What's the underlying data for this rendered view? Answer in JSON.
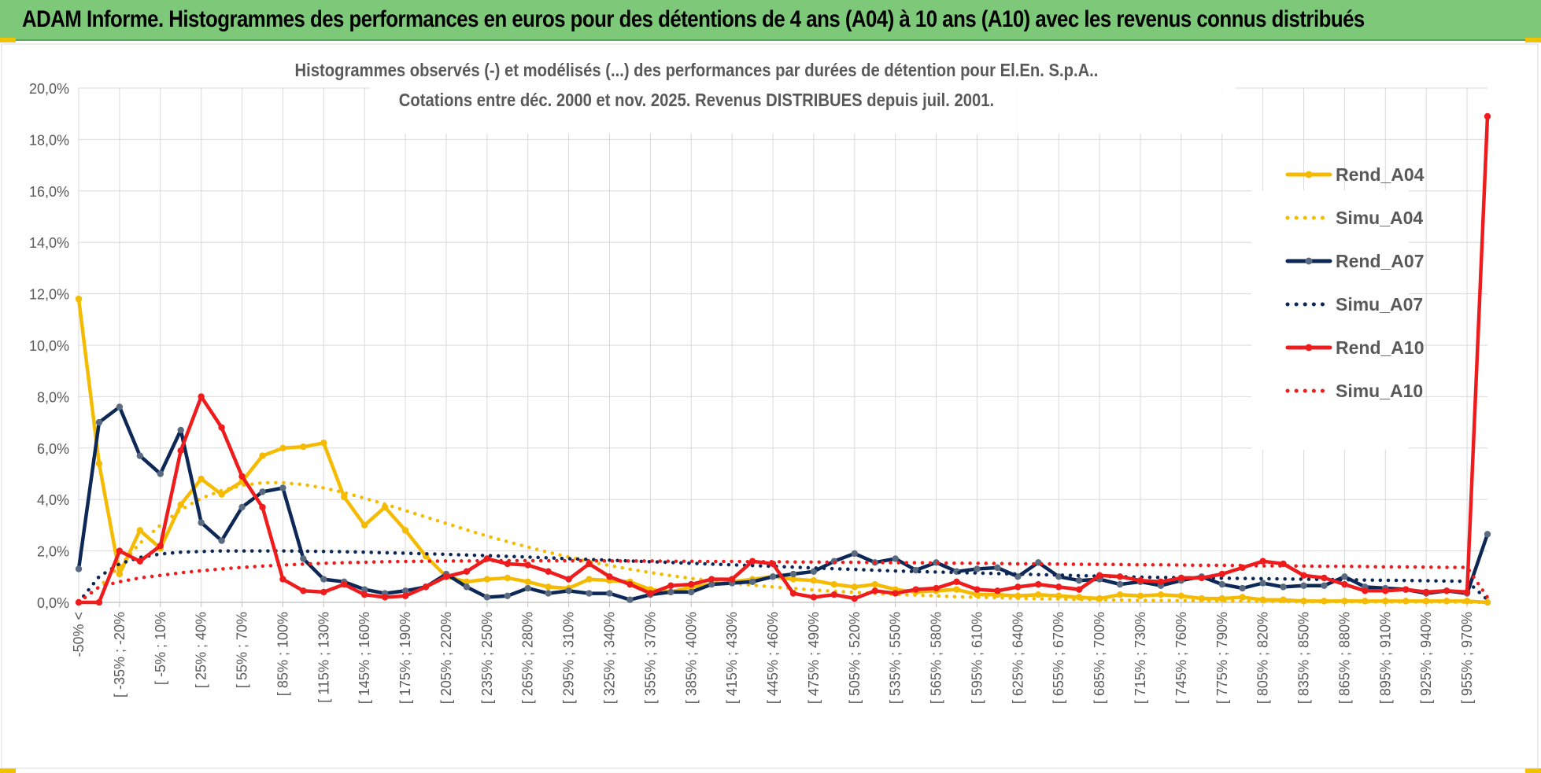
{
  "header": {
    "title": "ADAM Informe. Histogrammes des performances en euros pour des détentions de 4 ans (A04) à 10 ans (A10) avec les revenus connus distribués"
  },
  "colors": {
    "banner": "#7ec87a",
    "a04": "#f5bb00",
    "a07": "#0d2857",
    "a10": "#ee1c1c",
    "grid": "#d9d9d9",
    "axis_text": "#595959"
  },
  "chart_data": {
    "type": "line",
    "title": "Histogrammes observés (-) et modélisés (...) des performances par durées de détention pour El.En. S.p.A..",
    "subtitle": "Cotations entre déc. 2000 et nov. 2025. Revenus DISTRIBUES depuis juil. 2001.",
    "ylim": [
      0,
      20
    ],
    "yticks": [
      "0,0%",
      "2,0%",
      "4,0%",
      "6,0%",
      "8,0%",
      "10,0%",
      "12,0%",
      "14,0%",
      "16,0%",
      "18,0%",
      "20,0%"
    ],
    "xtick_labels": [
      "-50% <",
      "[ -35% ; -20%",
      "[ -5% ; 10%",
      "[ 25% ; 40%",
      "[ 55% ; 70%",
      "[ 85% ; 100%",
      "[ 115% ; 130%",
      "[ 145% ; 160%",
      "[ 175% ; 190%",
      "[ 205% ; 220%",
      "[ 235% ; 250%",
      "[ 265% ; 280%",
      "[ 295% ; 310%",
      "[ 325% ; 340%",
      "[ 355% ; 370%",
      "[ 385% ; 400%",
      "[ 415% ; 430%",
      "[ 445% ; 460%",
      "[ 475% ; 490%",
      "[ 505% ; 520%",
      "[ 535% ; 550%",
      "[ 565% ; 580%",
      "[ 595% ; 610%",
      "[ 625% ; 640%",
      "[ 655% ; 670%",
      "[ 685% ; 700%",
      "[ 715% ; 730%",
      "[ 745% ; 760%",
      "[ 775% ; 790%",
      "[ 805% ; 820%",
      "[ 835% ; 850%",
      "[ 865% ; 880%",
      "[ 895% ; 910%",
      "[ 925% ; 940%",
      "[ 955% ; 970%"
    ],
    "n_points": 70,
    "grid": true,
    "legend_position": "right",
    "series": [
      {
        "name": "Rend_A04",
        "style": "solid",
        "color": "#f5bb00",
        "values": [
          11.8,
          5.4,
          1.1,
          2.8,
          2.1,
          3.8,
          4.8,
          4.2,
          4.7,
          5.7,
          6.0,
          6.05,
          6.2,
          4.1,
          3.0,
          3.7,
          2.8,
          1.8,
          1.0,
          0.8,
          0.9,
          0.95,
          0.8,
          0.6,
          0.55,
          0.9,
          0.85,
          0.8,
          0.5,
          0.4,
          0.6,
          0.7,
          0.8,
          0.9,
          1.0,
          0.9,
          0.85,
          0.7,
          0.6,
          0.7,
          0.5,
          0.4,
          0.45,
          0.5,
          0.3,
          0.3,
          0.25,
          0.3,
          0.25,
          0.2,
          0.15,
          0.3,
          0.25,
          0.3,
          0.25,
          0.15,
          0.15,
          0.2,
          0.1,
          0.1,
          0.05,
          0.05,
          0.05,
          0.05,
          0.05,
          0.05,
          0.05,
          0.05,
          0.05,
          0.0
        ]
      },
      {
        "name": "Simu_A04",
        "style": "dotted",
        "color": "#f5bb00",
        "values": [
          0.0,
          0.6,
          1.4,
          2.3,
          3.0,
          3.6,
          4.05,
          4.35,
          4.55,
          4.65,
          4.65,
          4.58,
          4.45,
          4.27,
          4.05,
          3.82,
          3.57,
          3.32,
          3.07,
          2.82,
          2.58,
          2.36,
          2.15,
          1.95,
          1.76,
          1.59,
          1.43,
          1.29,
          1.16,
          1.04,
          0.93,
          0.84,
          0.75,
          0.67,
          0.6,
          0.54,
          0.48,
          0.43,
          0.39,
          0.35,
          0.31,
          0.28,
          0.25,
          0.22,
          0.2,
          0.18,
          0.16,
          0.14,
          0.13,
          0.11,
          0.1,
          0.09,
          0.08,
          0.07,
          0.07,
          0.06,
          0.05,
          0.05,
          0.04,
          0.04,
          0.03,
          0.03,
          0.03,
          0.02,
          0.02,
          0.02,
          0.02,
          0.02,
          0.01,
          0.0
        ]
      },
      {
        "name": "Rend_A07",
        "style": "solid",
        "color": "#0d2857",
        "values": [
          1.3,
          7.0,
          7.6,
          5.7,
          5.0,
          6.7,
          3.1,
          2.4,
          3.7,
          4.3,
          4.45,
          1.7,
          0.9,
          0.8,
          0.5,
          0.35,
          0.45,
          0.6,
          1.1,
          0.6,
          0.2,
          0.25,
          0.55,
          0.35,
          0.45,
          0.35,
          0.35,
          0.1,
          0.3,
          0.4,
          0.4,
          0.7,
          0.75,
          0.8,
          1.0,
          1.1,
          1.2,
          1.6,
          1.9,
          1.55,
          1.7,
          1.25,
          1.55,
          1.2,
          1.3,
          1.35,
          1.0,
          1.55,
          1.0,
          0.85,
          0.9,
          0.7,
          0.8,
          0.65,
          0.85,
          1.0,
          0.7,
          0.55,
          0.75,
          0.6,
          0.65,
          0.65,
          1.0,
          0.6,
          0.55,
          0.5,
          0.35,
          0.45,
          0.35,
          2.65
        ]
      },
      {
        "name": "Simu_A07",
        "style": "dotted",
        "color": "#0d2857",
        "values": [
          0.0,
          1.0,
          1.5,
          1.75,
          1.88,
          1.95,
          1.98,
          2.0,
          2.0,
          2.0,
          2.0,
          1.99,
          1.98,
          1.97,
          1.95,
          1.93,
          1.91,
          1.89,
          1.87,
          1.84,
          1.82,
          1.79,
          1.76,
          1.73,
          1.7,
          1.67,
          1.64,
          1.61,
          1.58,
          1.55,
          1.52,
          1.49,
          1.46,
          1.43,
          1.4,
          1.37,
          1.34,
          1.31,
          1.28,
          1.25,
          1.22,
          1.2,
          1.18,
          1.16,
          1.14,
          1.12,
          1.1,
          1.08,
          1.06,
          1.04,
          1.02,
          1.0,
          0.98,
          0.97,
          0.96,
          0.95,
          0.94,
          0.93,
          0.92,
          0.91,
          0.9,
          0.89,
          0.88,
          0.87,
          0.86,
          0.85,
          0.84,
          0.83,
          0.82,
          0.1
        ]
      },
      {
        "name": "Rend_A10",
        "style": "solid",
        "color": "#ee1c1c",
        "values": [
          0.0,
          0.0,
          2.0,
          1.6,
          2.2,
          5.9,
          8.0,
          6.8,
          4.9,
          3.7,
          0.9,
          0.45,
          0.4,
          0.7,
          0.3,
          0.2,
          0.25,
          0.6,
          1.0,
          1.2,
          1.7,
          1.5,
          1.45,
          1.2,
          0.9,
          1.5,
          1.0,
          0.7,
          0.35,
          0.65,
          0.7,
          0.9,
          0.9,
          1.6,
          1.5,
          0.35,
          0.2,
          0.3,
          0.15,
          0.45,
          0.35,
          0.5,
          0.55,
          0.8,
          0.5,
          0.45,
          0.6,
          0.7,
          0.6,
          0.5,
          1.05,
          1.0,
          0.85,
          0.8,
          0.95,
          0.95,
          1.1,
          1.35,
          1.6,
          1.5,
          1.05,
          0.95,
          0.7,
          0.45,
          0.45,
          0.5,
          0.4,
          0.45,
          0.4,
          18.9
        ]
      },
      {
        "name": "Simu_A10",
        "style": "dotted",
        "color": "#ee1c1c",
        "values": [
          0.0,
          0.6,
          0.8,
          0.95,
          1.05,
          1.15,
          1.23,
          1.3,
          1.36,
          1.41,
          1.45,
          1.49,
          1.52,
          1.54,
          1.56,
          1.58,
          1.59,
          1.6,
          1.61,
          1.61,
          1.62,
          1.62,
          1.62,
          1.62,
          1.62,
          1.62,
          1.61,
          1.61,
          1.61,
          1.6,
          1.6,
          1.59,
          1.59,
          1.58,
          1.58,
          1.57,
          1.57,
          1.56,
          1.56,
          1.55,
          1.54,
          1.54,
          1.53,
          1.52,
          1.52,
          1.51,
          1.5,
          1.5,
          1.49,
          1.48,
          1.48,
          1.47,
          1.46,
          1.46,
          1.45,
          1.44,
          1.44,
          1.43,
          1.42,
          1.42,
          1.41,
          1.4,
          1.4,
          1.39,
          1.38,
          1.38,
          1.37,
          1.36,
          1.36,
          0.2
        ]
      }
    ]
  }
}
